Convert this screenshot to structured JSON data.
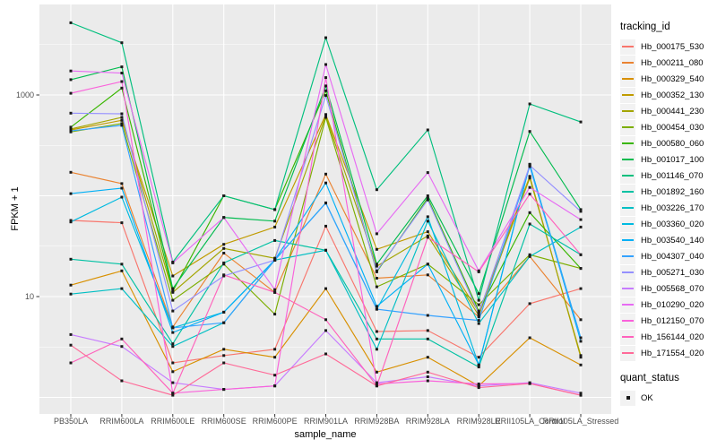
{
  "figure": {
    "background": "#FFFFFF",
    "panel_bg": "#EBEBEB",
    "grid_color": "#FFFFFF",
    "tick_mark_color": "#333333",
    "axis_text_color": "#4D4D4D",
    "point_color": "#1A1A1A"
  },
  "chart_data": {
    "type": "line",
    "title": "",
    "xlabel": "sample_name",
    "ylabel": "FPKM + 1",
    "y_scale": "log10",
    "y_axis_ticks": [
      {
        "label": "1000",
        "value": 1000
      },
      {
        "label": "10",
        "value": 10
      }
    ],
    "y_major_gridlines": [
      1,
      10,
      100,
      1000
    ],
    "y_minor_gridlines": [
      3.162,
      31.62,
      316.2,
      3162
    ],
    "ylim_log": [
      0.79,
      6980
    ],
    "grid": "on",
    "legend_position": "right",
    "categories": [
      "PB350LA",
      "RRIM600LA",
      "RRIM600LE",
      "RRIM600SE",
      "RRIM600PE",
      "RRIM901LA",
      "RRIM928BA",
      "RRIM928LA",
      "RRIM928LE",
      "RRII105LA_Control",
      "RRII105LA_Stressed"
    ],
    "legend": {
      "title": "tracking_id",
      "secondary_title": "quant_status",
      "secondary_items": [
        "OK"
      ]
    },
    "series": [
      {
        "name": "Hb_000175_530",
        "color": "#F8766D",
        "values": [
          57,
          54,
          2.2,
          2.6,
          3.0,
          50,
          4.5,
          4.6,
          2.5,
          8.5,
          12
        ]
      },
      {
        "name": "Hb_000211_080",
        "color": "#EA8331",
        "values": [
          171,
          132,
          5.0,
          27,
          11,
          164,
          15.2,
          16.4,
          6.3,
          25,
          5.9
        ]
      },
      {
        "name": "Hb_000329_540",
        "color": "#D89000",
        "values": [
          13,
          18,
          1.8,
          3.0,
          2.5,
          12,
          1.78,
          2.5,
          1.3,
          3.9,
          2.1
        ]
      },
      {
        "name": "Hb_000352_130",
        "color": "#C09B00",
        "values": [
          450,
          560,
          16,
          33,
          49,
          640,
          29.4,
          44,
          7.0,
          156,
          2.5
        ]
      },
      {
        "name": "Hb_000441_230",
        "color": "#A3A500",
        "values": [
          460,
          600,
          11,
          30,
          24,
          620,
          20,
          40,
          6.5,
          150,
          2.6
        ]
      },
      {
        "name": "Hb_000454_030",
        "color": "#7CAE00",
        "values": [
          430,
          520,
          9.2,
          21,
          6.7,
          600,
          12.5,
          21,
          8.3,
          26,
          19
        ]
      },
      {
        "name": "Hb_000580_060",
        "color": "#39B600",
        "values": [
          480,
          1170,
          11.3,
          100,
          73,
          1100,
          17.6,
          95,
          7.2,
          68,
          19
        ]
      },
      {
        "name": "Hb_001017_100",
        "color": "#00BB4E",
        "values": [
          1420,
          1900,
          12,
          61,
          56,
          1230,
          21,
          100,
          10.7,
          435,
          73
        ]
      },
      {
        "name": "Hb_001146_070",
        "color": "#00BF7D",
        "values": [
          5200,
          3300,
          22,
          100,
          73,
          3700,
          115,
          450,
          9.2,
          815,
          540
        ]
      },
      {
        "name": "Hb_001892_160",
        "color": "#00C1A3",
        "values": [
          23.5,
          21,
          3.4,
          21.6,
          36,
          28.8,
          3.8,
          3.8,
          2.0,
          52.5,
          26
        ]
      },
      {
        "name": "Hb_003226_170",
        "color": "#00BFC4",
        "values": [
          10.6,
          12,
          3.2,
          5.5,
          23,
          28.8,
          3.0,
          56,
          5.4,
          25,
          49
        ]
      },
      {
        "name": "Hb_003360_020",
        "color": "#00BAE0",
        "values": [
          55,
          97,
          4.9,
          7.0,
          23,
          85,
          7.5,
          62,
          2.1,
          205,
          3.9
        ]
      },
      {
        "name": "Hb_003540_140",
        "color": "#00B0F6",
        "values": [
          105,
          119,
          4.4,
          7.0,
          23.1,
          134,
          8.0,
          21,
          2.1,
          205,
          3.6
        ]
      },
      {
        "name": "Hb_004307_040",
        "color": "#35A2FF",
        "values": [
          440,
          500,
          4.9,
          5.5,
          23,
          84.5,
          7.5,
          6.5,
          5.8,
          195,
          3.9
        ]
      },
      {
        "name": "Hb_005271_030",
        "color": "#9590FF",
        "values": [
          660,
          650,
          7.2,
          16,
          23,
          987,
          18,
          91,
          6.8,
          200,
          70
        ]
      },
      {
        "name": "Hb_005568_070",
        "color": "#C77CFF",
        "values": [
          4.2,
          3.2,
          1.4,
          1.2,
          1.3,
          4.6,
          1.4,
          1.6,
          1.3,
          1.4,
          1.1
        ]
      },
      {
        "name": "Hb_010290_020",
        "color": "#E76BF3",
        "values": [
          1730,
          1650,
          21.6,
          61,
          11.7,
          2006,
          42,
          170,
          18,
          121,
          58
        ]
      },
      {
        "name": "Hb_012150_070",
        "color": "#FA62DB",
        "values": [
          1040,
          1360,
          1.1,
          1.2,
          1.3,
          1486,
          1.36,
          1.46,
          1.36,
          1.37,
          1.05
        ]
      },
      {
        "name": "Hb_156144_020",
        "color": "#FF62BC",
        "values": [
          2.2,
          3.8,
          1.1,
          16.4,
          11,
          5.9,
          1.3,
          38.7,
          17.6,
          104,
          26
        ]
      },
      {
        "name": "Hb_171554_020",
        "color": "#FF6A98",
        "values": [
          3.3,
          1.46,
          1.05,
          2.2,
          1.66,
          2.7,
          1.3,
          1.78,
          1.25,
          1.37,
          1.05
        ]
      }
    ]
  }
}
